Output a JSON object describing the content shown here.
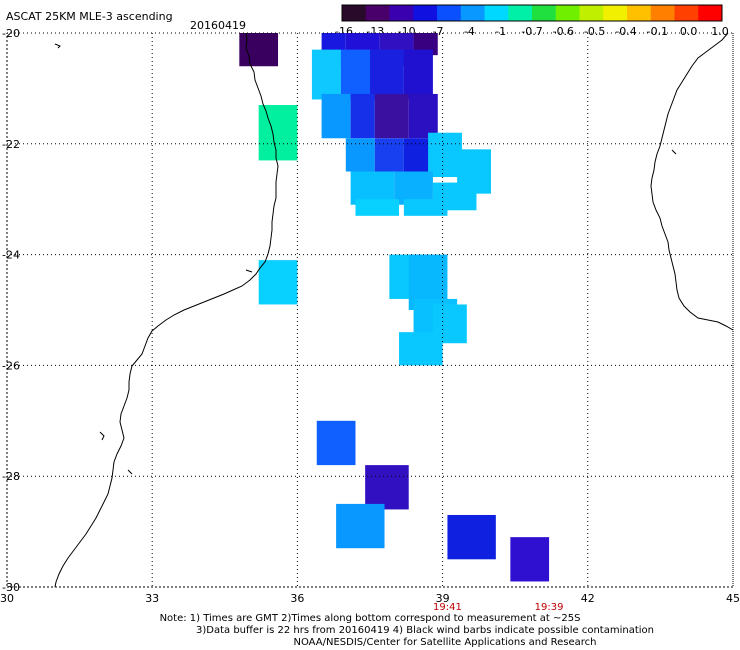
{
  "header": {
    "title": "ASCAT 25KM MLE-3 ascending",
    "date": "20160419"
  },
  "colorbar": {
    "labels": [
      "-16",
      "-13",
      "-10",
      "-7",
      "-4",
      "-1",
      "-0.7",
      "-0.6",
      "-0.5",
      "-0.4",
      "-0.1",
      "0.0",
      "1.0"
    ],
    "colors": [
      "#2a0a2a",
      "#4a006a",
      "#3a00b0",
      "#1010e0",
      "#0a50ff",
      "#0898ff",
      "#00d8ff",
      "#00f0a8",
      "#20e040",
      "#70f000",
      "#c0f000",
      "#f0f000",
      "#ffc000",
      "#ff8000",
      "#ff4000",
      "#ff0000"
    ]
  },
  "map": {
    "lon_min": 30,
    "lon_max": 45,
    "lat_min": -30,
    "lat_max": -20,
    "lon_ticks": [
      "30",
      "33",
      "36",
      "39",
      "42",
      "45"
    ],
    "lat_ticks": [
      "-20",
      "-22",
      "-24",
      "-26",
      "-28",
      "-30"
    ],
    "time_labels": [
      {
        "lon": 39.1,
        "text": "19:41"
      },
      {
        "lon": 41.2,
        "text": "19:39"
      }
    ]
  },
  "footer": {
    "line1": "Note: 1) Times are GMT 2)Times along bottom correspond to measurement at ~25S",
    "line2": "3)Data buffer is 22 hrs from 20160419 4) Black wind barbs indicate possible contamination",
    "line3": "NOAA/NESDIS/Center for Satellite Applications and Research"
  }
}
